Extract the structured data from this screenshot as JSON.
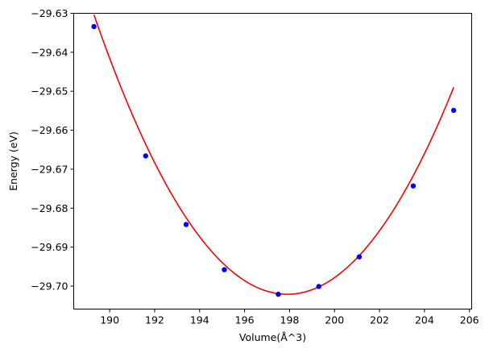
{
  "chart_data": {
    "type": "scatter",
    "title": "",
    "xlabel": "Volume(Å^3)",
    "ylabel": "Energy (eV)",
    "xlim": [
      188.4,
      206.1
    ],
    "ylim": [
      -29.7059,
      -29.63
    ],
    "xticks": [
      190,
      192,
      194,
      196,
      198,
      200,
      202,
      204,
      206
    ],
    "xtick_labels": [
      "190",
      "192",
      "194",
      "196",
      "198",
      "200",
      "202",
      "204",
      "206"
    ],
    "yticks": [
      -29.63,
      -29.64,
      -29.65,
      -29.66,
      -29.67,
      -29.68,
      -29.69,
      -29.7
    ],
    "ytick_labels": [
      "−29.63",
      "−29.64",
      "−29.65",
      "−29.66",
      "−29.67",
      "−29.68",
      "−29.69",
      "−29.70"
    ],
    "grid": false,
    "series": [
      {
        "style": "markers",
        "color": "#0000ff",
        "x": [
          189.3,
          191.6,
          193.4,
          195.1,
          197.5,
          199.3,
          201.1,
          203.5,
          205.3
        ],
        "y": [
          -29.6334,
          -29.6666,
          -29.6842,
          -29.6958,
          -29.7021,
          -29.7001,
          -29.6925,
          -29.6743,
          -29.6549
        ]
      },
      {
        "style": "line",
        "color": "#ff0000",
        "fit": "parabola",
        "vertex_x": 197.9,
        "vertex_y": -29.7021,
        "curvature": 0.00097,
        "x_range": [
          189.3,
          205.3
        ]
      }
    ]
  }
}
